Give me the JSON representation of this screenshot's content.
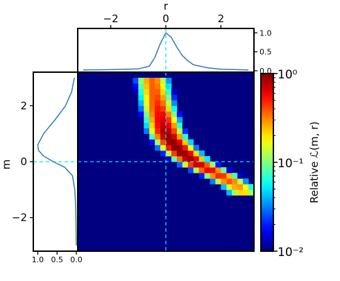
{
  "chart_data": [
    {
      "id": "main",
      "type": "heatmap",
      "x_label": "",
      "y_label": "m",
      "xlim": [
        -3.2,
        3.2
      ],
      "ylim": [
        -3.2,
        3.2
      ],
      "y_ticks": [
        -2,
        0,
        2
      ],
      "y_tick_labels": [
        "−2",
        "0",
        "2"
      ],
      "grid": false,
      "crosshair": {
        "x": 0,
        "y": 0,
        "color": "#00e5ff"
      },
      "colorbar": {
        "label": "Relative ℒ(m, r)",
        "scale": "log",
        "range": [
          0.01,
          1
        ],
        "tick_values": [
          1,
          0.1,
          0.01
        ],
        "tick_labels": [
          "10⁰",
          "10⁻¹",
          "10⁻²"
        ],
        "colormap": "jet"
      },
      "cells_description_free": true,
      "grid_x_range": [
        -3.2,
        3.2
      ],
      "grid_y_range": [
        -3.2,
        3.2
      ],
      "grid_size": 32,
      "ridge": {
        "points_m_r": [
          [
            3.0,
            -0.5
          ],
          [
            2.0,
            -0.3
          ],
          [
            1.0,
            0.0
          ],
          [
            0.5,
            0.4
          ],
          [
            0.0,
            1.0
          ],
          [
            -0.5,
            2.0
          ],
          [
            -1.0,
            2.8
          ]
        ],
        "peak": {
          "r": 0.45,
          "m": 0.55,
          "value": 1.0
        },
        "width_r": 0.38
      }
    },
    {
      "id": "top-marginal",
      "type": "line",
      "x_label": "r",
      "x_ticks": [
        -2,
        0,
        2
      ],
      "x_tick_labels": [
        "−2",
        "0",
        "2"
      ],
      "y_ticks": [
        0,
        0.5,
        1
      ],
      "y_tick_labels": [
        "0.0",
        "0.5",
        "1.0"
      ],
      "xlim": [
        -3.2,
        3.2
      ],
      "ylim": [
        0,
        1.08
      ],
      "x": [
        -3.0,
        -2.0,
        -1.0,
        -0.6,
        -0.4,
        -0.2,
        0.0,
        0.2,
        0.4,
        0.6,
        0.8,
        1.0,
        1.5,
        2.0,
        3.0
      ],
      "y": [
        0.02,
        0.03,
        0.05,
        0.12,
        0.35,
        0.72,
        1.0,
        0.88,
        0.62,
        0.4,
        0.26,
        0.16,
        0.08,
        0.04,
        0.02
      ]
    },
    {
      "id": "left-marginal",
      "type": "line",
      "orientation": "horizontal-inverted",
      "y_label": "m",
      "x_ticks": [
        1,
        0.5,
        0
      ],
      "x_tick_labels": [
        "1.0",
        "0.5",
        "0.0"
      ],
      "xlim": [
        1.08,
        0
      ],
      "ylim": [
        -3.2,
        3.2
      ],
      "m": [
        3.0,
        2.5,
        2.0,
        1.5,
        1.0,
        0.6,
        0.4,
        0.2,
        0.0,
        -0.2,
        -0.5,
        -1.0,
        -1.5,
        -2.0,
        -3.0
      ],
      "value": [
        0.05,
        0.12,
        0.28,
        0.55,
        0.85,
        1.0,
        0.98,
        0.85,
        0.6,
        0.3,
        0.1,
        0.04,
        0.02,
        0.01,
        0.0
      ]
    }
  ]
}
